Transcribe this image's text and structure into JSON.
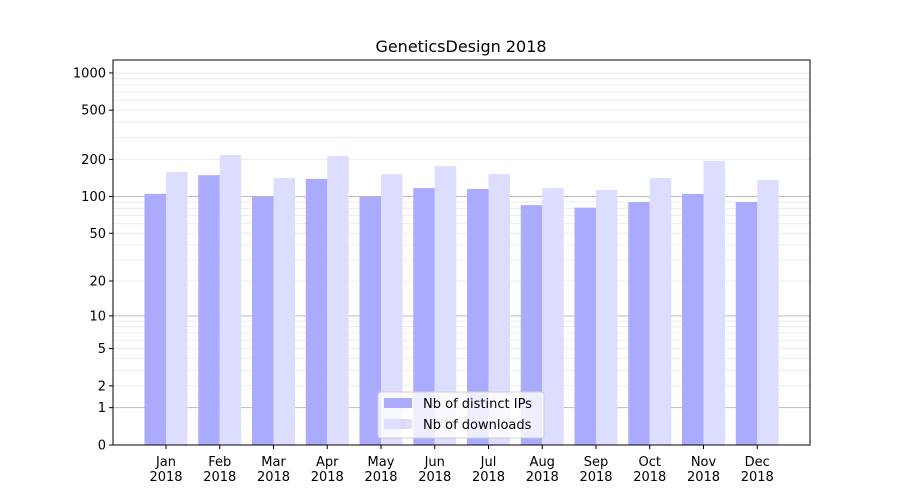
{
  "chart_data": {
    "type": "bar",
    "title": "GeneticsDesign 2018",
    "xlabel": "",
    "ylabel": "",
    "yscale": "symlog (log of 1+value)",
    "ylim": [
      0,
      1300
    ],
    "yticks": [
      0,
      1,
      2,
      5,
      10,
      20,
      50,
      100,
      200,
      500,
      1000
    ],
    "grid": true,
    "legend_position": "bottom-center",
    "categories": [
      "Jan\n2018",
      "Feb\n2018",
      "Mar\n2018",
      "Apr\n2018",
      "May\n2018",
      "Jun\n2018",
      "Jul\n2018",
      "Aug\n2018",
      "Sep\n2018",
      "Oct\n2018",
      "Nov\n2018",
      "Dec\n2018"
    ],
    "series": [
      {
        "name": "Nb of distinct IPs",
        "color": "#aaaaff",
        "values": [
          105,
          149,
          100,
          139,
          100,
          117,
          115,
          85,
          81,
          90,
          105,
          90
        ]
      },
      {
        "name": "Nb of downloads",
        "color": "#ddddff",
        "values": [
          158,
          217,
          141,
          213,
          152,
          177,
          152,
          117,
          113,
          141,
          194,
          136
        ]
      }
    ]
  }
}
